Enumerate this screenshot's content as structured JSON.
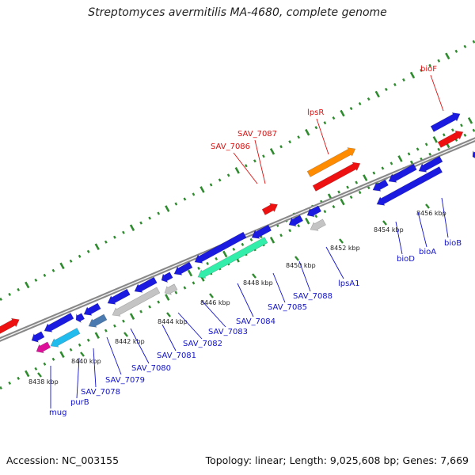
{
  "title": "Streptomyces avermitilis MA-4680, complete genome",
  "footer": {
    "accession": "Accession: NC_003155",
    "summary": "Topology: linear; Length: 9,025,608 bp; Genes: 7,669"
  },
  "colors": {
    "background": "#ffffff",
    "backbone": "#888888",
    "tick_marks": "#2e8b2e",
    "label_forward": "#dd1111",
    "label_reverse": "#1111cc",
    "blue_gene": "#1a1ae0",
    "red_gene": "#ee1111",
    "orange_gene": "#ff8c00",
    "cyan_gene": "#22bbee",
    "steel_gene": "#4a7ab0",
    "grey_gene": "#c4c4c4",
    "mint_gene": "#33eeaa",
    "magenta_gene": "#dd1199"
  },
  "scale_labels": [
    "8438 kbp",
    "8440 kbp",
    "8442 kbp",
    "8444 kbp",
    "8446 kbp",
    "8448 kbp",
    "8450 kbp",
    "8452 kbp",
    "8454 kbp",
    "8456 kbp"
  ],
  "forward_labels": [
    "SAV_7086",
    "SAV_7087",
    "lpsR",
    "bioF"
  ],
  "reverse_labels": [
    "mug",
    "purB",
    "SAV_7078",
    "SAV_7079",
    "SAV_7080",
    "SAV_7081",
    "SAV_7082",
    "SAV_7083",
    "SAV_7084",
    "SAV_7085",
    "SAV_7088",
    "lpsA1",
    "bioD",
    "bioA",
    "bioB"
  ]
}
